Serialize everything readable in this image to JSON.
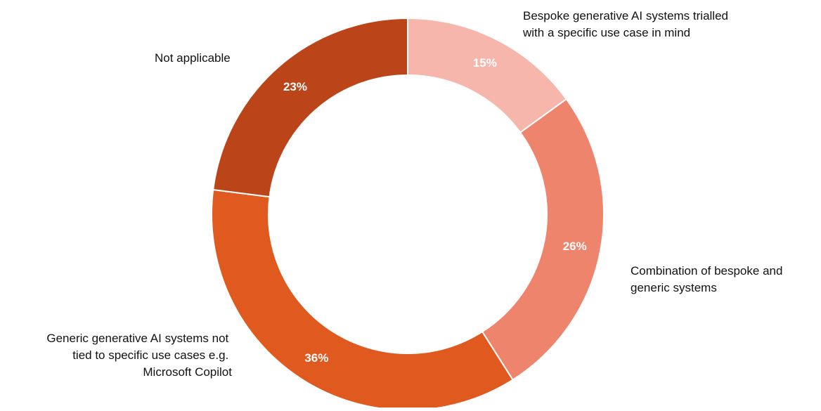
{
  "chart_data": {
    "type": "pie",
    "variant": "donut",
    "title": "",
    "categories": [
      "Bespoke generative AI systems trialled with a specific use case in mind",
      "Combination of bespoke and generic systems",
      "Generic generative AI systems not tied to specific use cases e.g. Microsoft Copilot",
      "Not applicable"
    ],
    "values": [
      15,
      26,
      36,
      23
    ],
    "value_labels": [
      "15%",
      "26%",
      "36%",
      "23%"
    ],
    "colors": [
      "#f6b6ab",
      "#ef846c",
      "#e05a20",
      "#bb4518"
    ],
    "legend": "none",
    "label_placement": "outside"
  },
  "labels": {
    "bespoke": [
      "Bespoke generative AI systems trialled",
      "with a specific use case in mind"
    ],
    "combination": [
      "Combination of bespoke and",
      "generic systems"
    ],
    "generic": [
      "Generic generative AI systems not",
      "tied to specific use cases e.g.",
      "Microsoft Copilot"
    ],
    "not_applicable": [
      "Not applicable"
    ]
  }
}
